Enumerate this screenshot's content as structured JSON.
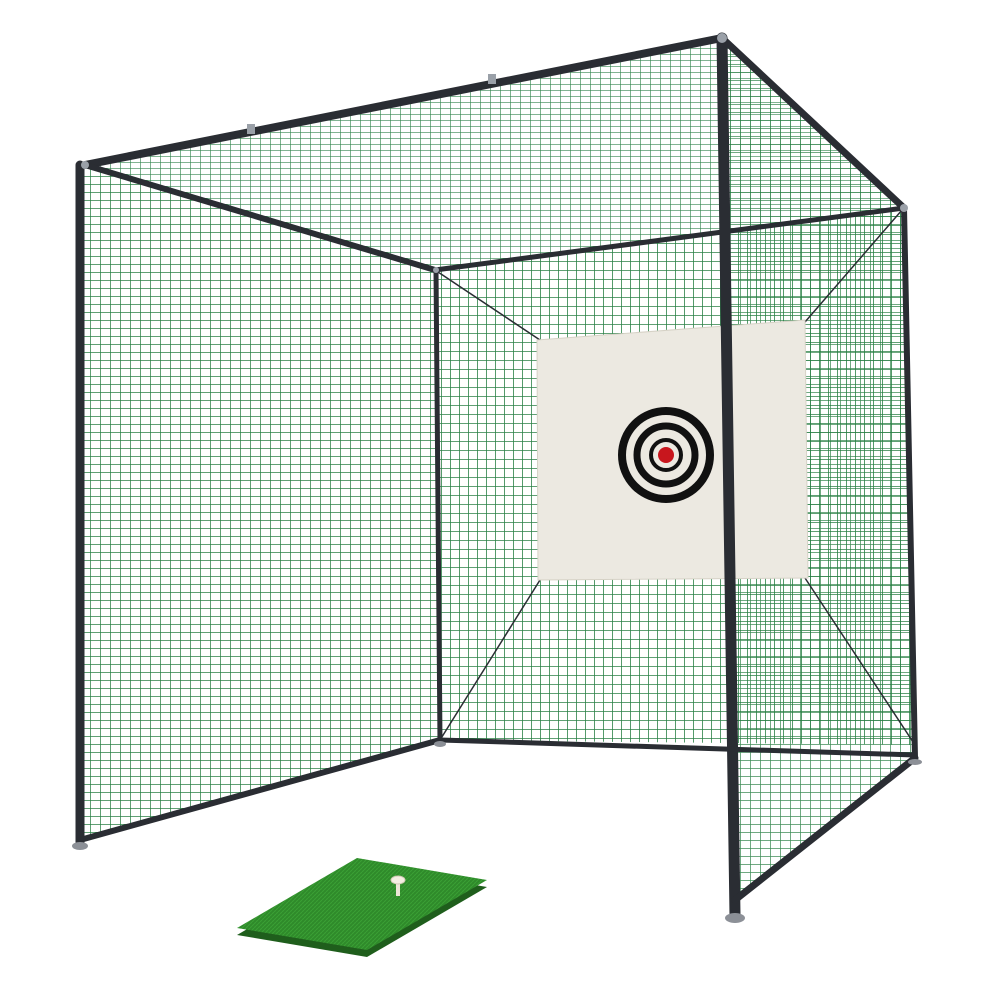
{
  "image": {
    "subject": "golf-practice-cage",
    "background_color": "#ffffff"
  },
  "colors": {
    "frame": "#2a2d33",
    "net": "#1f7a3c",
    "net_dark": "#155a2b",
    "target_panel": "#ece9e1",
    "target_ring": "#111111",
    "target_bullseye": "#c8161d",
    "mat": "#2f8a2a",
    "mat_edge": "#1f5e1c",
    "tee": "#ece6d6",
    "foot": "#8c9097"
  },
  "icons": [
    "golf-cage",
    "target",
    "hitting-mat",
    "golf-tee"
  ]
}
